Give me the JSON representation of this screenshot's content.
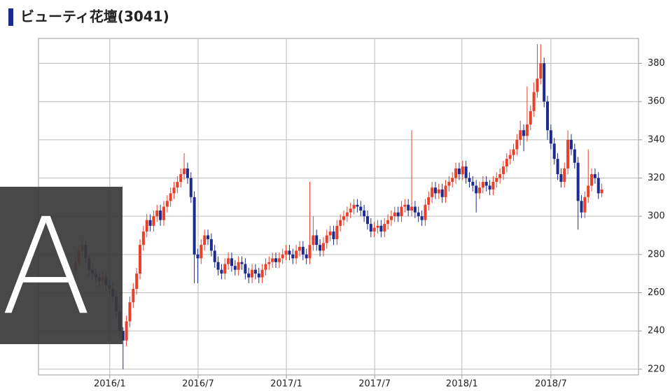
{
  "chart_data": {
    "type": "candlestick",
    "title": "ビューティ花壇(3041)",
    "up_color": "#e8402a",
    "down_color": "#1b2b8f",
    "grid": true,
    "ylim": [
      217,
      393
    ],
    "yticks": [
      220,
      240,
      260,
      280,
      300,
      320,
      340,
      360,
      380
    ],
    "xlim": [
      -10.9,
      165.8
    ],
    "xticks": [
      {
        "value": 10.1,
        "label": "2016/1"
      },
      {
        "value": 36.1,
        "label": "2016/7"
      },
      {
        "value": 62.1,
        "label": "2017/1"
      },
      {
        "value": 88.1,
        "label": "2017/7"
      },
      {
        "value": 113.8,
        "label": "2018/1"
      },
      {
        "value": 140,
        "label": "2018/7"
      }
    ],
    "ohlc": [
      [
        272,
        279,
        269,
        276
      ],
      [
        276,
        285,
        274,
        282
      ],
      [
        282,
        288,
        279,
        285
      ],
      [
        285,
        287,
        275,
        278
      ],
      [
        278,
        280,
        269,
        272
      ],
      [
        272,
        275,
        267,
        270
      ],
      [
        270,
        273,
        265,
        268
      ],
      [
        268,
        271,
        263,
        266
      ],
      [
        266,
        271,
        263,
        268
      ],
      [
        268,
        270,
        261,
        264
      ],
      [
        264,
        267,
        259,
        262
      ],
      [
        262,
        265,
        255,
        258
      ],
      [
        258,
        261,
        247,
        250
      ],
      [
        250,
        253,
        236,
        240
      ],
      [
        240,
        242,
        220,
        235
      ],
      [
        235,
        248,
        232,
        245
      ],
      [
        245,
        258,
        242,
        255
      ],
      [
        255,
        265,
        252,
        262
      ],
      [
        262,
        273,
        259,
        270
      ],
      [
        270,
        288,
        267,
        285
      ],
      [
        285,
        295,
        282,
        292
      ],
      [
        292,
        301,
        289,
        298
      ],
      [
        298,
        301,
        292,
        295
      ],
      [
        295,
        303,
        292,
        300
      ],
      [
        300,
        306,
        297,
        303
      ],
      [
        303,
        306,
        295,
        298
      ],
      [
        298,
        308,
        295,
        305
      ],
      [
        305,
        311,
        302,
        308
      ],
      [
        308,
        315,
        305,
        312
      ],
      [
        312,
        318,
        309,
        315
      ],
      [
        315,
        321,
        312,
        318
      ],
      [
        318,
        325,
        315,
        322
      ],
      [
        322,
        333,
        319,
        325
      ],
      [
        325,
        328,
        317,
        320
      ],
      [
        320,
        323,
        307,
        310
      ],
      [
        310,
        313,
        265,
        280
      ],
      [
        280,
        283,
        265,
        278
      ],
      [
        278,
        288,
        275,
        285
      ],
      [
        285,
        293,
        282,
        290
      ],
      [
        290,
        293,
        285,
        288
      ],
      [
        288,
        291,
        279,
        282
      ],
      [
        282,
        285,
        273,
        276
      ],
      [
        276,
        279,
        269,
        272
      ],
      [
        272,
        275,
        267,
        270
      ],
      [
        270,
        278,
        267,
        275
      ],
      [
        275,
        281,
        272,
        278
      ],
      [
        278,
        281,
        271,
        274
      ],
      [
        274,
        277,
        269,
        272
      ],
      [
        272,
        279,
        269,
        276
      ],
      [
        276,
        279,
        272,
        275
      ],
      [
        275,
        278,
        267,
        270
      ],
      [
        270,
        273,
        265,
        268
      ],
      [
        268,
        275,
        265,
        272
      ],
      [
        272,
        275,
        267,
        270
      ],
      [
        270,
        273,
        265,
        268
      ],
      [
        268,
        275,
        265,
        272
      ],
      [
        272,
        278,
        269,
        275
      ],
      [
        275,
        279,
        272,
        276
      ],
      [
        276,
        281,
        273,
        278
      ],
      [
        278,
        281,
        273,
        276
      ],
      [
        276,
        281,
        273,
        278
      ],
      [
        278,
        283,
        275,
        280
      ],
      [
        280,
        285,
        277,
        282
      ],
      [
        282,
        285,
        277,
        280
      ],
      [
        280,
        283,
        275,
        278
      ],
      [
        278,
        285,
        275,
        282
      ],
      [
        282,
        287,
        279,
        284
      ],
      [
        284,
        287,
        277,
        280
      ],
      [
        280,
        283,
        275,
        278
      ],
      [
        278,
        318,
        275,
        285
      ],
      [
        285,
        300,
        282,
        290
      ],
      [
        290,
        293,
        282,
        285
      ],
      [
        285,
        288,
        279,
        282
      ],
      [
        282,
        289,
        279,
        286
      ],
      [
        286,
        293,
        283,
        290
      ],
      [
        290,
        295,
        287,
        292
      ],
      [
        292,
        295,
        285,
        288
      ],
      [
        288,
        298,
        285,
        295
      ],
      [
        295,
        301,
        292,
        298
      ],
      [
        298,
        303,
        295,
        300
      ],
      [
        300,
        305,
        297,
        302
      ],
      [
        302,
        307,
        299,
        304
      ],
      [
        304,
        309,
        301,
        306
      ],
      [
        306,
        309,
        302,
        305
      ],
      [
        305,
        308,
        300,
        303
      ],
      [
        303,
        306,
        297,
        300
      ],
      [
        300,
        303,
        293,
        296
      ],
      [
        296,
        299,
        289,
        292
      ],
      [
        292,
        297,
        289,
        294
      ],
      [
        294,
        298,
        291,
        295
      ],
      [
        295,
        298,
        289,
        292
      ],
      [
        292,
        299,
        289,
        296
      ],
      [
        296,
        301,
        293,
        298
      ],
      [
        298,
        303,
        295,
        300
      ],
      [
        300,
        305,
        297,
        302
      ],
      [
        302,
        305,
        297,
        300
      ],
      [
        300,
        308,
        297,
        305
      ],
      [
        305,
        309,
        302,
        306
      ],
      [
        306,
        309,
        300,
        303
      ],
      [
        303,
        345,
        300,
        305
      ],
      [
        305,
        308,
        299,
        302
      ],
      [
        302,
        305,
        297,
        300
      ],
      [
        300,
        303,
        295,
        298
      ],
      [
        298,
        309,
        295,
        306
      ],
      [
        306,
        313,
        303,
        310
      ],
      [
        310,
        318,
        307,
        315
      ],
      [
        315,
        318,
        309,
        312
      ],
      [
        312,
        317,
        309,
        314
      ],
      [
        314,
        317,
        307,
        310
      ],
      [
        310,
        319,
        307,
        316
      ],
      [
        316,
        321,
        313,
        318
      ],
      [
        318,
        323,
        315,
        320
      ],
      [
        320,
        328,
        317,
        325
      ],
      [
        325,
        328,
        319,
        322
      ],
      [
        322,
        329,
        319,
        326
      ],
      [
        326,
        329,
        317,
        320
      ],
      [
        320,
        323,
        315,
        318
      ],
      [
        318,
        321,
        313,
        316
      ],
      [
        316,
        319,
        302,
        312
      ],
      [
        312,
        318,
        309,
        315
      ],
      [
        315,
        321,
        312,
        318
      ],
      [
        318,
        321,
        313,
        316
      ],
      [
        316,
        319,
        311,
        314
      ],
      [
        314,
        321,
        311,
        318
      ],
      [
        318,
        323,
        315,
        320
      ],
      [
        320,
        325,
        317,
        322
      ],
      [
        322,
        329,
        319,
        326
      ],
      [
        326,
        333,
        323,
        330
      ],
      [
        330,
        335,
        327,
        332
      ],
      [
        332,
        338,
        329,
        335
      ],
      [
        335,
        343,
        332,
        340
      ],
      [
        340,
        350,
        337,
        345
      ],
      [
        345,
        348,
        334,
        342
      ],
      [
        342,
        368,
        339,
        348
      ],
      [
        348,
        358,
        345,
        355
      ],
      [
        355,
        370,
        352,
        365
      ],
      [
        365,
        390,
        362,
        372
      ],
      [
        372,
        390,
        369,
        380
      ],
      [
        380,
        383,
        357,
        360
      ],
      [
        360,
        363,
        340,
        345
      ],
      [
        345,
        348,
        335,
        338
      ],
      [
        338,
        341,
        327,
        330
      ],
      [
        330,
        333,
        319,
        322
      ],
      [
        322,
        325,
        315,
        318
      ],
      [
        318,
        328,
        315,
        325
      ],
      [
        325,
        345,
        322,
        340
      ],
      [
        340,
        343,
        332,
        335
      ],
      [
        335,
        338,
        325,
        328
      ],
      [
        328,
        331,
        293,
        308
      ],
      [
        308,
        311,
        299,
        302
      ],
      [
        302,
        313,
        299,
        310
      ],
      [
        310,
        335,
        307,
        316
      ],
      [
        316,
        325,
        313,
        322
      ],
      [
        322,
        325,
        317,
        320
      ],
      [
        320,
        323,
        309,
        312
      ],
      [
        312,
        317,
        310,
        314
      ]
    ]
  },
  "overlay": {
    "label": "A"
  }
}
